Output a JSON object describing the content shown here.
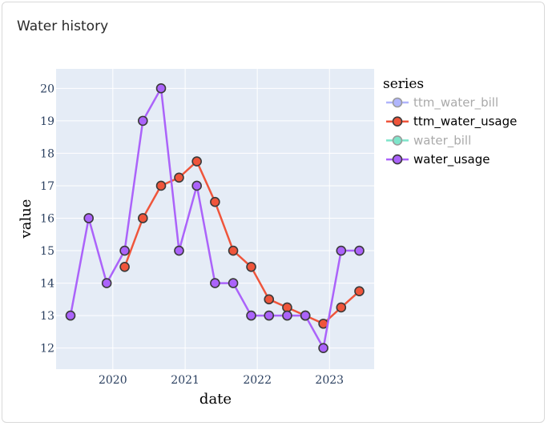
{
  "card": {
    "title": "Water history"
  },
  "chart_data": {
    "type": "line",
    "title": "",
    "xlabel": "date",
    "ylabel": "value",
    "x_ticks": [
      "2020",
      "2021",
      "2022",
      "2023"
    ],
    "y_ticks": [
      12,
      13,
      14,
      15,
      16,
      17,
      18,
      19,
      20
    ],
    "xlim": [
      "2019-03-20",
      "2023-08-15"
    ],
    "ylim": [
      11.35,
      20.6
    ],
    "grid": true,
    "legend": {
      "title": "series",
      "placement": "right"
    },
    "series": [
      {
        "name": "ttm_water_bill",
        "color": "#636efa",
        "visible": false,
        "x": [],
        "y": []
      },
      {
        "name": "ttm_water_usage",
        "color": "#ef553b",
        "visible": true,
        "x": [
          "2020-03-01",
          "2020-06-01",
          "2020-09-01",
          "2020-12-01",
          "2021-03-01",
          "2021-06-01",
          "2021-09-01",
          "2021-12-01",
          "2022-03-01",
          "2022-06-01",
          "2022-09-01",
          "2022-12-01",
          "2023-03-01",
          "2023-06-01"
        ],
        "y": [
          14.5,
          16,
          17,
          17.25,
          17.75,
          16.5,
          15,
          14.5,
          13.5,
          13.25,
          13,
          12.75,
          13.25,
          13.75
        ]
      },
      {
        "name": "water_bill",
        "color": "#00cc96",
        "visible": false,
        "x": [],
        "y": []
      },
      {
        "name": "water_usage",
        "color": "#ab63fa",
        "visible": true,
        "x": [
          "2019-06-01",
          "2019-09-01",
          "2019-12-01",
          "2020-03-01",
          "2020-06-01",
          "2020-09-01",
          "2020-12-01",
          "2021-03-01",
          "2021-06-01",
          "2021-09-01",
          "2021-12-01",
          "2022-03-01",
          "2022-06-01",
          "2022-09-01",
          "2022-12-01",
          "2023-03-01",
          "2023-06-01"
        ],
        "y": [
          13,
          16,
          14,
          15,
          19,
          20,
          15,
          17,
          14,
          14,
          13,
          13,
          13,
          13,
          12,
          15,
          15
        ]
      }
    ]
  }
}
